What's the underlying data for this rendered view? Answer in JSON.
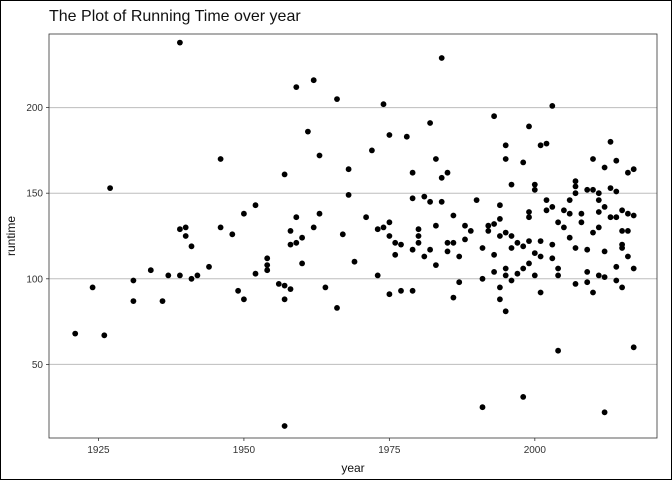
{
  "chart_data": {
    "type": "scatter",
    "title": "The Plot of Running Time over year",
    "xlabel": "year",
    "ylabel": "runtime",
    "xlim": [
      1916.5,
      2021
    ],
    "ylim": [
      7,
      243
    ],
    "xticks": [
      1925,
      1950,
      1975,
      2000
    ],
    "yticks": [
      50,
      100,
      150,
      200
    ],
    "grid": {
      "major_y": true,
      "major_x": false
    },
    "point_color": "#000000",
    "points": [
      [
        1921,
        68
      ],
      [
        1924,
        95
      ],
      [
        1926,
        67
      ],
      [
        1927,
        153
      ],
      [
        1931,
        99
      ],
      [
        1931,
        87
      ],
      [
        1934,
        105
      ],
      [
        1936,
        87
      ],
      [
        1937,
        102
      ],
      [
        1939,
        238
      ],
      [
        1939,
        129
      ],
      [
        1939,
        102
      ],
      [
        1940,
        130
      ],
      [
        1940,
        125
      ],
      [
        1941,
        100
      ],
      [
        1941,
        119
      ],
      [
        1942,
        102
      ],
      [
        1944,
        107
      ],
      [
        1946,
        130
      ],
      [
        1946,
        170
      ],
      [
        1948,
        126
      ],
      [
        1949,
        93
      ],
      [
        1950,
        88
      ],
      [
        1950,
        138
      ],
      [
        1952,
        143
      ],
      [
        1952,
        103
      ],
      [
        1954,
        112
      ],
      [
        1954,
        108
      ],
      [
        1954,
        105
      ],
      [
        1956,
        97
      ],
      [
        1957,
        161
      ],
      [
        1957,
        88
      ],
      [
        1957,
        14
      ],
      [
        1957,
        96
      ],
      [
        1958,
        120
      ],
      [
        1958,
        128
      ],
      [
        1958,
        94
      ],
      [
        1959,
        212
      ],
      [
        1959,
        136
      ],
      [
        1959,
        121
      ],
      [
        1960,
        124
      ],
      [
        1960,
        109
      ],
      [
        1961,
        186
      ],
      [
        1962,
        130
      ],
      [
        1962,
        216
      ],
      [
        1963,
        172
      ],
      [
        1963,
        138
      ],
      [
        1964,
        95
      ],
      [
        1966,
        205
      ],
      [
        1966,
        83
      ],
      [
        1967,
        126
      ],
      [
        1968,
        149
      ],
      [
        1968,
        164
      ],
      [
        1969,
        110
      ],
      [
        1971,
        136
      ],
      [
        1972,
        175
      ],
      [
        1973,
        102
      ],
      [
        1973,
        129
      ],
      [
        1974,
        202
      ],
      [
        1974,
        130
      ],
      [
        1975,
        184
      ],
      [
        1975,
        133
      ],
      [
        1975,
        125
      ],
      [
        1975,
        91
      ],
      [
        1976,
        121
      ],
      [
        1976,
        114
      ],
      [
        1977,
        120
      ],
      [
        1977,
        93
      ],
      [
        1978,
        183
      ],
      [
        1979,
        147
      ],
      [
        1979,
        162
      ],
      [
        1979,
        93
      ],
      [
        1979,
        117
      ],
      [
        1980,
        121
      ],
      [
        1980,
        125
      ],
      [
        1980,
        129
      ],
      [
        1981,
        148
      ],
      [
        1981,
        113
      ],
      [
        1982,
        191
      ],
      [
        1982,
        117
      ],
      [
        1982,
        145
      ],
      [
        1983,
        108
      ],
      [
        1983,
        131
      ],
      [
        1983,
        170
      ],
      [
        1984,
        229
      ],
      [
        1984,
        159
      ],
      [
        1984,
        145
      ],
      [
        1985,
        121
      ],
      [
        1985,
        162
      ],
      [
        1985,
        116
      ],
      [
        1986,
        121
      ],
      [
        1986,
        137
      ],
      [
        1986,
        89
      ],
      [
        1987,
        98
      ],
      [
        1987,
        113
      ],
      [
        1988,
        131
      ],
      [
        1988,
        123
      ],
      [
        1989,
        128
      ],
      [
        1990,
        146
      ],
      [
        1991,
        118
      ],
      [
        1991,
        25
      ],
      [
        1991,
        100
      ],
      [
        1992,
        128
      ],
      [
        1992,
        131
      ],
      [
        1993,
        195
      ],
      [
        1993,
        132
      ],
      [
        1993,
        104
      ],
      [
        1993,
        114
      ],
      [
        1994,
        135
      ],
      [
        1994,
        143
      ],
      [
        1994,
        95
      ],
      [
        1994,
        125
      ],
      [
        1994,
        88
      ],
      [
        1995,
        178
      ],
      [
        1995,
        170
      ],
      [
        1995,
        127
      ],
      [
        1995,
        106
      ],
      [
        1995,
        81
      ],
      [
        1995,
        102
      ],
      [
        1996,
        99
      ],
      [
        1996,
        155
      ],
      [
        1996,
        125
      ],
      [
        1996,
        118
      ],
      [
        1997,
        121
      ],
      [
        1997,
        103
      ],
      [
        1998,
        119
      ],
      [
        1998,
        31
      ],
      [
        1998,
        106
      ],
      [
        1998,
        168
      ],
      [
        1999,
        139
      ],
      [
        1999,
        189
      ],
      [
        1999,
        136
      ],
      [
        1999,
        122
      ],
      [
        1999,
        109
      ],
      [
        2000,
        155
      ],
      [
        2000,
        152
      ],
      [
        2000,
        115
      ],
      [
        2000,
        102
      ],
      [
        2001,
        178
      ],
      [
        2001,
        122
      ],
      [
        2001,
        92
      ],
      [
        2001,
        113
      ],
      [
        2002,
        179
      ],
      [
        2002,
        146
      ],
      [
        2002,
        140
      ],
      [
        2003,
        201
      ],
      [
        2003,
        142
      ],
      [
        2003,
        120
      ],
      [
        2003,
        112
      ],
      [
        2004,
        133
      ],
      [
        2004,
        106
      ],
      [
        2004,
        58
      ],
      [
        2004,
        102
      ],
      [
        2005,
        140
      ],
      [
        2005,
        130
      ],
      [
        2006,
        138
      ],
      [
        2006,
        146
      ],
      [
        2006,
        124
      ],
      [
        2007,
        154
      ],
      [
        2007,
        157
      ],
      [
        2007,
        150
      ],
      [
        2007,
        118
      ],
      [
        2007,
        97
      ],
      [
        2008,
        133
      ],
      [
        2008,
        138
      ],
      [
        2009,
        152
      ],
      [
        2009,
        104
      ],
      [
        2009,
        117
      ],
      [
        2009,
        98
      ],
      [
        2010,
        170
      ],
      [
        2010,
        152
      ],
      [
        2010,
        127
      ],
      [
        2010,
        92
      ],
      [
        2011,
        150
      ],
      [
        2011,
        139
      ],
      [
        2011,
        130
      ],
      [
        2011,
        146
      ],
      [
        2011,
        102
      ],
      [
        2012,
        165
      ],
      [
        2012,
        142
      ],
      [
        2012,
        116
      ],
      [
        2012,
        101
      ],
      [
        2012,
        22
      ],
      [
        2013,
        180
      ],
      [
        2013,
        153
      ],
      [
        2013,
        136
      ],
      [
        2014,
        169
      ],
      [
        2014,
        151
      ],
      [
        2014,
        136
      ],
      [
        2014,
        107
      ],
      [
        2014,
        99
      ],
      [
        2015,
        140
      ],
      [
        2015,
        128
      ],
      [
        2015,
        120
      ],
      [
        2015,
        118
      ],
      [
        2015,
        95
      ],
      [
        2016,
        162
      ],
      [
        2016,
        138
      ],
      [
        2016,
        128
      ],
      [
        2016,
        113
      ],
      [
        2017,
        164
      ],
      [
        2017,
        137
      ],
      [
        2017,
        106
      ],
      [
        2017,
        60
      ]
    ]
  }
}
